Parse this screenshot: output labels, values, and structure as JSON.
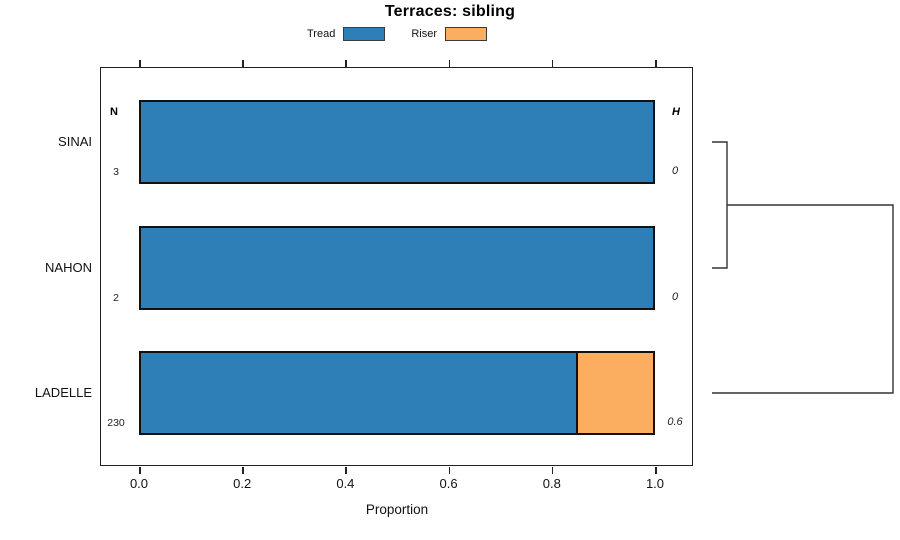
{
  "title": "Terraces: sibling",
  "legend": {
    "items": [
      {
        "label": "Tread",
        "color": "#2E7EB8"
      },
      {
        "label": "Riser",
        "color": "#FBAD60"
      }
    ]
  },
  "axes": {
    "x_label": "Proportion",
    "x_ticks": [
      "0.0",
      "0.2",
      "0.4",
      "0.6",
      "0.8",
      "1.0"
    ],
    "x_range": [
      0,
      1
    ]
  },
  "columns": {
    "count_header": "N",
    "h_header": "H"
  },
  "chart_data": {
    "type": "bar",
    "orientation": "horizontal-stacked",
    "title": "Terraces: sibling",
    "xlabel": "Proportion",
    "xlim": [
      0,
      1
    ],
    "categories": [
      "SINAI",
      "NAHON",
      "LADELLE"
    ],
    "series": [
      {
        "name": "Tread",
        "color": "#2E7EB8",
        "values": [
          1.0,
          1.0,
          0.85
        ]
      },
      {
        "name": "Riser",
        "color": "#FBAD60",
        "values": [
          0.0,
          0.0,
          0.15
        ]
      }
    ],
    "row_annotations": {
      "N": [
        "3",
        "2",
        "230"
      ],
      "H": [
        "0",
        "0",
        "0.6"
      ]
    },
    "legend_position": "top",
    "grid": false,
    "dendrogram": {
      "joins": [
        {
          "members": [
            "SINAI",
            "NAHON"
          ],
          "relative_height": 0.08
        },
        {
          "members": [
            "SINAI+NAHON",
            "LADELLE"
          ],
          "relative_height": 1.0
        }
      ]
    }
  }
}
